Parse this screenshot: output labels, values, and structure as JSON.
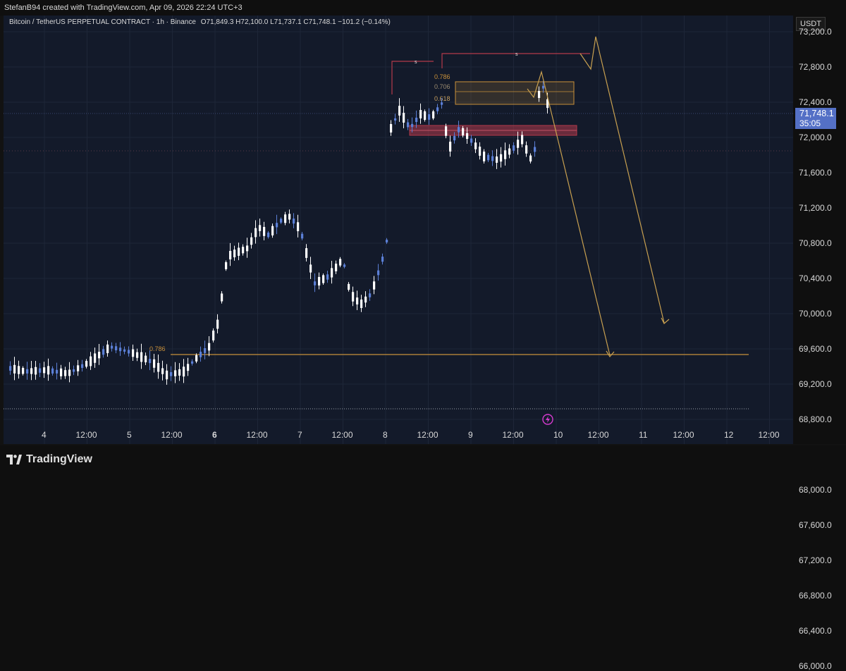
{
  "header": {
    "attribution": "StefanB94 created with TradingView.com, Apr 09, 2026 22:24 UTC+3"
  },
  "legend": {
    "symbol": "Bitcoin / TetherUS PERPETUAL CONTRACT · 1h · Binance",
    "ohlc": "O71,849.3  H72,100.0  L71,737.1  C71,748.1  −101.2 (−0.14%)"
  },
  "price_axis": {
    "unit": "USDT",
    "labels": [
      "73,200.0",
      "72,800.0",
      "72,400.0",
      "72,000.0",
      "71,600.0",
      "71,200.0",
      "70,800.0",
      "70,400.0",
      "70,000.0",
      "69,600.0",
      "69,200.0",
      "68,800.0",
      "68,400.0",
      "68,000.0",
      "67,600.0",
      "67,200.0",
      "66,800.0",
      "66,400.0",
      "66,000.0"
    ],
    "current_price": "71,748.1",
    "countdown": "35:05"
  },
  "time_axis": {
    "labels": [
      "4",
      "12:00",
      "5",
      "12:00",
      "6",
      "12:00",
      "7",
      "12:00",
      "8",
      "12:00",
      "9",
      "12:00",
      "10",
      "12:00",
      "11",
      "12:00",
      "12",
      "12:00"
    ]
  },
  "annotations": {
    "fib_786_low": "0.786",
    "fib_786": "0.786",
    "fib_706": "0.706",
    "fib_618": "0.618",
    "swing_marker_1": "s",
    "swing_marker_2": "s"
  },
  "colors": {
    "background": "#131a2a",
    "candle_up": "#ffffff",
    "candle_down": "#5b7fd6",
    "fib_orange": "#c8903a",
    "liquidity_red": "#b33a4a",
    "projection": "#c8a050",
    "price_tag": "#5470c6"
  },
  "footer": {
    "brand": "TradingView"
  },
  "icons": [
    "lightning-bolt-icon",
    "tradingview-logo-icon"
  ]
}
